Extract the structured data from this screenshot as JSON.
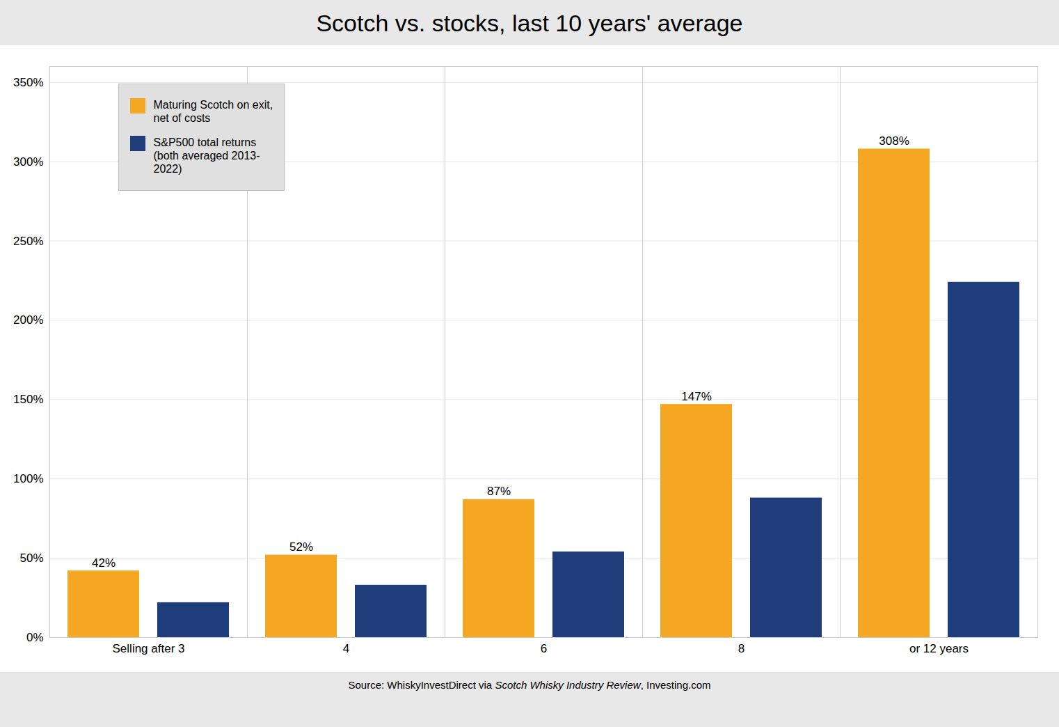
{
  "chart_data": {
    "type": "bar",
    "title": "Scotch vs. stocks, last 10 years' average",
    "categories": [
      "Selling after 3",
      "4",
      "6",
      "8",
      "or 12 years"
    ],
    "series": [
      {
        "name": "Maturing Scotch on exit,\nnet of costs",
        "color": "#F5A623",
        "values": [
          0.42,
          0.52,
          0.87,
          1.47,
          3.08
        ],
        "value_labels": [
          "42%",
          "52%",
          "87%",
          "147%",
          "308%"
        ],
        "data_labels": true
      },
      {
        "name": "S&P500 total returns\n(both averaged 2013-\n2022)",
        "color": "#1F3D7A",
        "values": [
          0.22,
          0.33,
          0.54,
          0.88,
          2.24
        ]
      }
    ],
    "ylim": [
      0,
      3.6
    ],
    "yticks": [
      {
        "value": 0.0,
        "label": "0%"
      },
      {
        "value": 0.5,
        "label": "50%"
      },
      {
        "value": 1.0,
        "label": "100%"
      },
      {
        "value": 1.5,
        "label": "150%"
      },
      {
        "value": 2.0,
        "label": "200%"
      },
      {
        "value": 2.5,
        "label": "250%"
      },
      {
        "value": 3.0,
        "label": "300%"
      },
      {
        "value": 3.5,
        "label": "350%"
      }
    ],
    "grid": true,
    "legend": "upper left",
    "source": [
      "Source: WhiskyInvestDirect via ",
      "Scotch Whisky Industry Review",
      ", Investing.com"
    ]
  }
}
